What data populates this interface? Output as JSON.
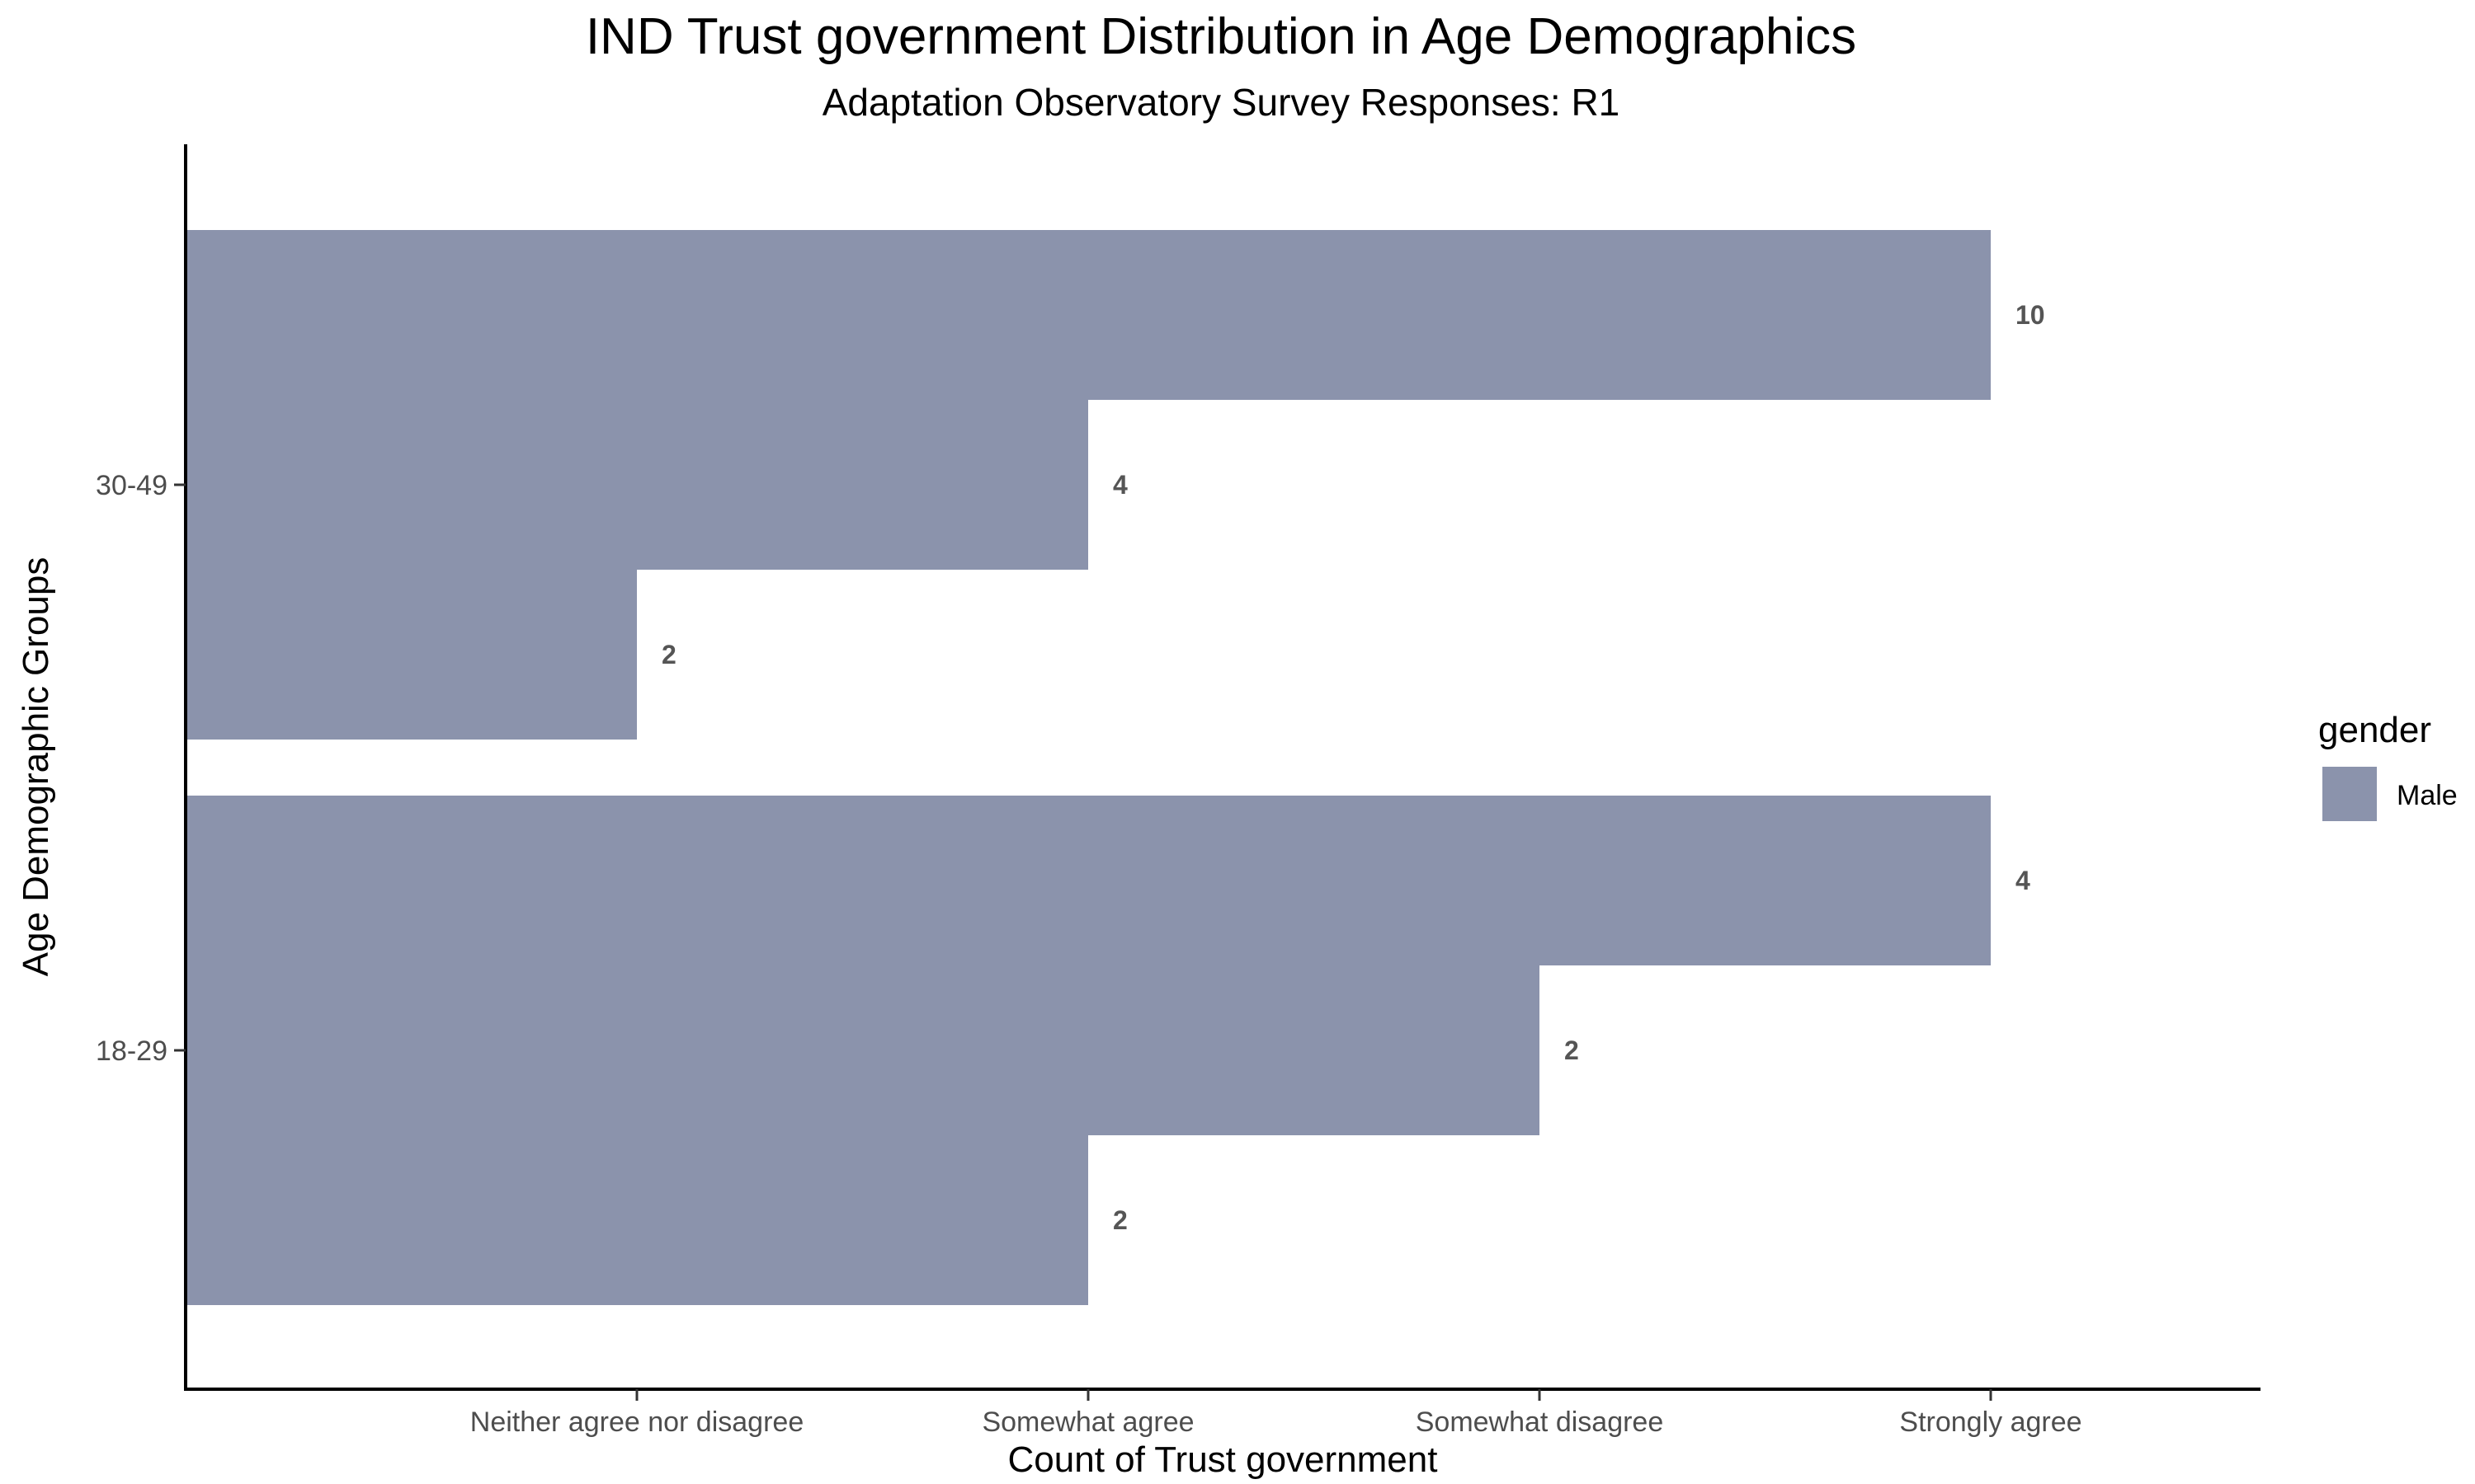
{
  "chart_data": {
    "type": "bar",
    "orientation": "horizontal",
    "title": "IND Trust government Distribution in Age Demographics",
    "subtitle": "Adaptation Observatory Survey Responses: R1",
    "xlabel": "Count of Trust government",
    "ylabel": "Age Demographic Groups",
    "x_categories": [
      "Neither agree nor disagree",
      "Somewhat agree",
      "Somewhat disagree",
      "Strongly agree"
    ],
    "y_categories": [
      "18-29",
      "30-49"
    ],
    "bars": [
      {
        "group": "30-49",
        "response": "Strongly agree",
        "count": 10
      },
      {
        "group": "30-49",
        "response": "Somewhat agree",
        "count": 4
      },
      {
        "group": "30-49",
        "response": "Neither agree nor disagree",
        "count": 2
      },
      {
        "group": "18-29",
        "response": "Strongly agree",
        "count": 4
      },
      {
        "group": "18-29",
        "response": "Somewhat disagree",
        "count": 2
      },
      {
        "group": "18-29",
        "response": "Somewhat agree",
        "count": 2
      }
    ],
    "legend": {
      "title": "gender",
      "entries": [
        {
          "name": "Male",
          "color": "#8b93ac"
        }
      ],
      "position": "right"
    },
    "grid": false
  }
}
